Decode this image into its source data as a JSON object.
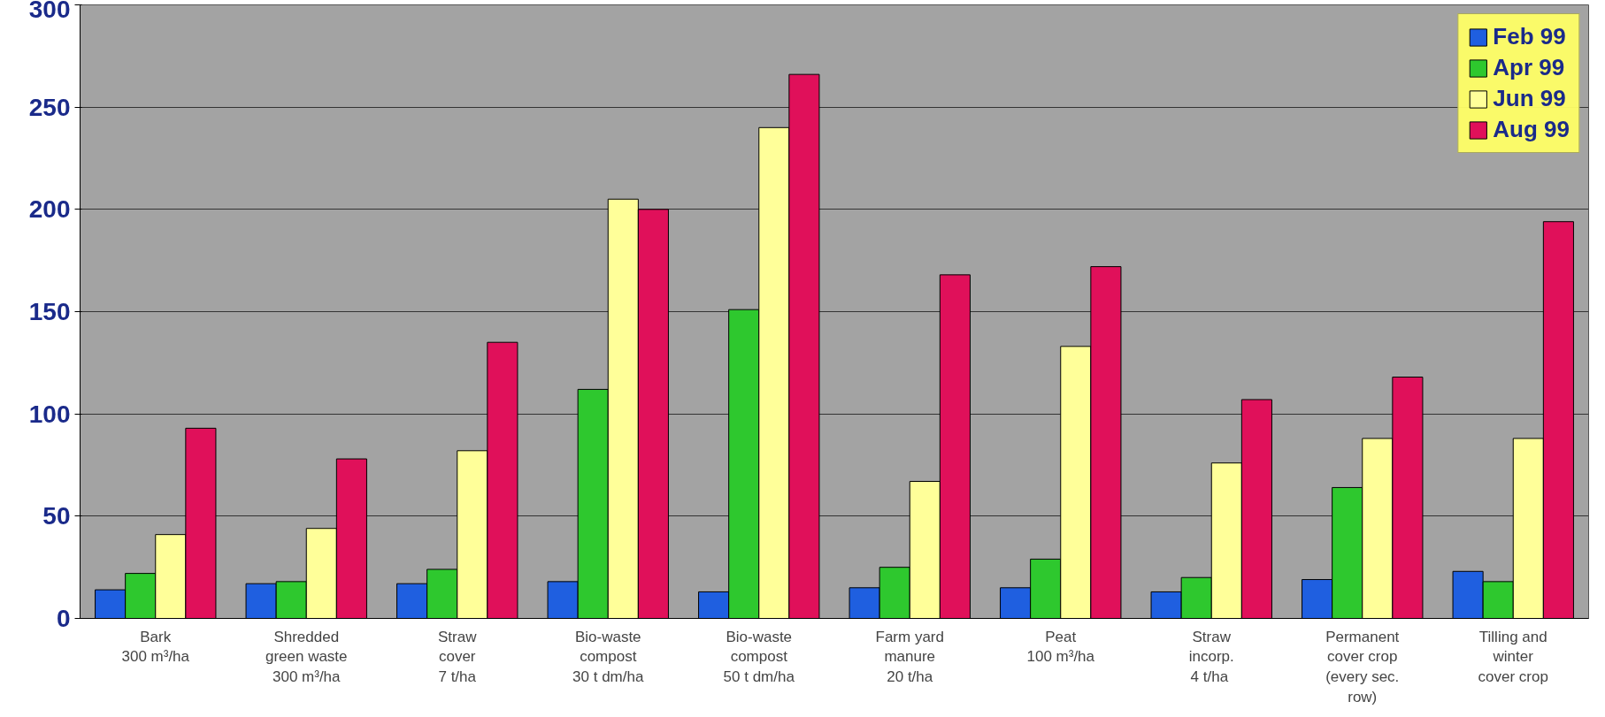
{
  "chart_data": {
    "type": "bar",
    "categories": [
      "Bark\n300 m³/ha",
      "Shredded\ngreen waste\n300 m³/ha",
      "Straw\ncover\n7 t/ha",
      "Bio-waste\ncompost\n30 t dm/ha",
      "Bio-waste\ncompost\n50 t dm/ha",
      "Farm yard\nmanure\n20 t/ha",
      "Peat\n100 m³/ha",
      "Straw\nincorp.\n4  t/ha",
      "Permanent\ncover crop\n(every sec.\nrow)",
      "Tilling and\nwinter\ncover crop"
    ],
    "series": [
      {
        "name": "Feb 99",
        "color": "#1f5fe0",
        "values": [
          14,
          17,
          17,
          18,
          13,
          15,
          15,
          13,
          19,
          23
        ]
      },
      {
        "name": "Apr 99",
        "color": "#2ec82e",
        "values": [
          22,
          18,
          24,
          112,
          151,
          25,
          29,
          20,
          64,
          18
        ]
      },
      {
        "name": "Jun 99",
        "color": "#ffff99",
        "values": [
          41,
          44,
          82,
          205,
          240,
          67,
          133,
          76,
          88,
          88
        ]
      },
      {
        "name": "Aug 99",
        "color": "#e0105a",
        "values": [
          93,
          78,
          135,
          200,
          266,
          168,
          172,
          107,
          118,
          194
        ]
      }
    ],
    "ylim": [
      0,
      300
    ],
    "yticks": [
      0,
      50,
      100,
      150,
      200,
      250,
      300
    ],
    "grid": "y",
    "legend": "top right"
  }
}
